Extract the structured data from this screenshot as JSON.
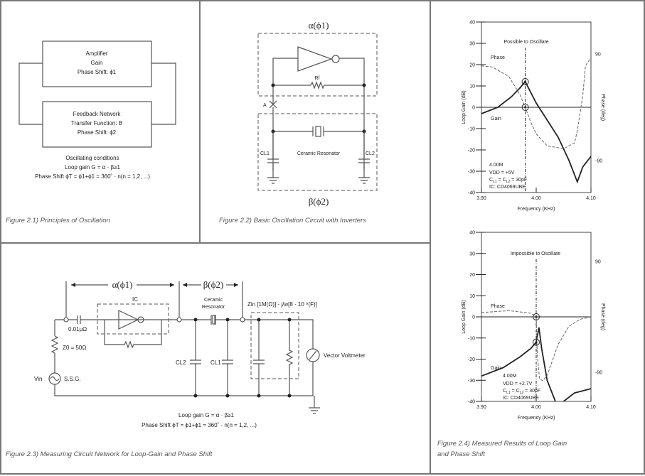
{
  "fig1": {
    "amp": [
      "Amplifier",
      "Gain",
      "Phase Shift: ϕ1"
    ],
    "feedback": [
      "Feedback Network",
      "Transfer Function: Β",
      "Phase Shift: ϕ2"
    ],
    "conditions": [
      "Oscillating conditions",
      "Loop gain G = α · β≥1",
      "Phase Shift ϕT = ϕ1+ϕ1 = 360˚ · n(n = 1,2, ...)"
    ],
    "caption": "Figure 2.1) Principles of Oscillation"
  },
  "fig2": {
    "alpha": "α(ϕ1)",
    "beta": "β(ϕ2)",
    "rf": "Rf",
    "point_a": "A",
    "cl1": "CL1",
    "cl2": "CL2",
    "resonator": "Ceramic Resonator",
    "caption": "Figure 2.2) Basic Oscillation Circuit with Inverters"
  },
  "fig3": {
    "alpha": "α(ϕ1)",
    "beta": "β(ϕ2)",
    "ic": "IC",
    "cap": "0.01μΩ",
    "z0": "Z0 = 50Ω",
    "vin": "Vin",
    "ssg": "S.S.G.",
    "resonator": [
      "Ceramic",
      "Resonator"
    ],
    "zin": "Zin [1M(Ω)] - j/w[8 · 10 ⁹(F)]",
    "cl2": "CL2",
    "cl1": "CL1",
    "voltmeter": "Vector Voltmeter",
    "loop_gain": "Loop gain G = α · β≥1",
    "phase_shift": "Phase Shift ϕT = ϕ1+ϕ1 = 360˚ · n(n = 1,2, ...)",
    "caption": "Figure 2.3) Measuring Circuit Network for Loop-Gain and Phase Shift"
  },
  "fig4": {
    "caption": [
      "Figure 2.4) Measured Results of  Loop Gain",
      "and Phase Shift"
    ]
  },
  "chart_data": [
    {
      "type": "line",
      "title": "Possible to Oscillate",
      "xlabel": "Frequency (KHz)",
      "ylabel": "Loop Gain (dB)",
      "y2label": "Phase (deg)",
      "xlim": [
        3.9,
        4.1
      ],
      "ylim": [
        -40,
        40
      ],
      "xticks": [
        "3.90",
        "4.00",
        "4.10"
      ],
      "yticks": [
        "40",
        "30",
        "20",
        "10",
        "0",
        "-10",
        "-20",
        "-30",
        "-40"
      ],
      "y2ticks": [
        "90",
        "-90"
      ],
      "marker_x": 3.98,
      "series": [
        {
          "name": "Gain",
          "axis": "dB",
          "style": "solid",
          "x": [
            3.9,
            3.93,
            3.955,
            3.97,
            3.98,
            3.99,
            4.0,
            4.02,
            4.04,
            4.06,
            4.075,
            4.085,
            4.1
          ],
          "y": [
            -3,
            0,
            5,
            9,
            12,
            7,
            2,
            -6,
            -14,
            -25,
            -35,
            -28,
            -23
          ]
        },
        {
          "name": "Phase",
          "axis": "deg",
          "style": "dashed",
          "x": [
            3.9,
            3.92,
            3.95,
            3.97,
            3.98,
            3.99,
            4.0,
            4.02,
            4.05,
            4.07,
            4.075,
            4.085,
            4.09,
            4.1
          ],
          "y": [
            70,
            68,
            52,
            22,
            0,
            -25,
            -45,
            -65,
            -70,
            -60,
            -40,
            20,
            70,
            84
          ]
        }
      ],
      "annotations": [
        "4.00M",
        "VDD = +5V",
        "CL1 = CL2 = 30pF",
        "IC: CD4069UBE"
      ],
      "vdd": "+5V"
    },
    {
      "type": "line",
      "title": "Impossible to Oscillate",
      "xlabel": "Frequency (KHz)",
      "ylabel": "Loop Gain (dB)",
      "y2label": "Phase (deg)",
      "xlim": [
        3.9,
        4.1
      ],
      "ylim": [
        -40,
        40
      ],
      "xticks": [
        "3.90",
        "4.00",
        "4.10"
      ],
      "yticks": [
        "40",
        "30",
        "20",
        "10",
        "0",
        "-10",
        "-20",
        "-30",
        "-40"
      ],
      "y2ticks": [
        "90",
        "-90"
      ],
      "marker_x": 4.0,
      "series": [
        {
          "name": "Gain",
          "axis": "dB",
          "style": "solid",
          "x": [
            3.9,
            3.94,
            3.97,
            3.99,
            4.0,
            4.005,
            4.01,
            4.02,
            4.035
          ],
          "y": [
            -28,
            -24,
            -19,
            -15,
            -12,
            -5,
            -15,
            -30,
            -40
          ]
        },
        {
          "name": "Gain (continued)",
          "axis": "dB",
          "style": "solid",
          "x": [
            4.05,
            4.07,
            4.1
          ],
          "y": [
            -40,
            -36,
            -34
          ]
        },
        {
          "name": "Phase",
          "axis": "deg",
          "style": "dashed",
          "x": [
            3.9,
            3.95,
            3.99,
            4.0,
            4.002,
            4.006,
            4.012,
            4.02,
            4.04,
            4.06,
            4.08,
            4.1
          ],
          "y": [
            7,
            10,
            6,
            0,
            -60,
            -100,
            -104,
            -95,
            -45,
            -15,
            -4,
            0
          ]
        }
      ],
      "annotations": [
        "4.00M",
        "VDD = +2.7V",
        "CL1 = CL2 = 30pF",
        "IC: CD4069UBE"
      ],
      "vdd": "+2.7V"
    }
  ],
  "colors": {
    "line": "#222222",
    "frame": "#777777",
    "caption": "#555555"
  }
}
